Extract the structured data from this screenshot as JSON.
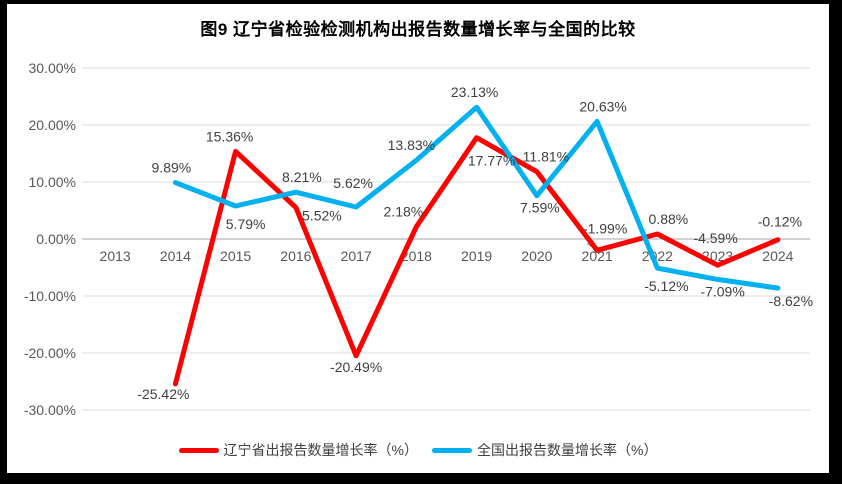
{
  "title": "图9  辽宁省检验检测机构出报告数量增长率与全国的比较",
  "legend": {
    "items": [
      {
        "label": "辽宁省出报告数量增长率（%）",
        "color": "#ff0000"
      },
      {
        "label": "全国出报告数量增长率（%）",
        "color": "#00b0f0"
      }
    ]
  },
  "colors": {
    "background": "#ffffff",
    "frame_border": "#000000",
    "gridline": "#dcdcdc",
    "zero_axis": "#c3c3c3",
    "axis_text": "#595959",
    "data_label_text": "#3f3f3f",
    "leader_line": "#9b9b9b"
  },
  "chart_data": {
    "type": "line",
    "title": "图9  辽宁省检验检测机构出报告数量增长率与全国的比较",
    "categories": [
      "2013",
      "2014",
      "2015",
      "2016",
      "2017",
      "2018",
      "2019",
      "2020",
      "2021",
      "2022",
      "2023",
      "2024"
    ],
    "series": [
      {
        "name": "辽宁省出报告数量增长率（%）",
        "color": "#ff0000",
        "values": [
          null,
          -25.42,
          15.36,
          5.52,
          -20.49,
          2.18,
          17.77,
          11.81,
          -1.99,
          0.88,
          -4.59,
          -0.12
        ],
        "label_side": [
          null,
          "below",
          "above",
          "below",
          "below",
          "above",
          "below",
          "above",
          "above",
          "above",
          "above",
          "above"
        ],
        "label_dx": [
          0,
          -12,
          -6,
          26,
          0,
          -13,
          15,
          9,
          8,
          11,
          -2,
          2
        ],
        "label_dy": [
          0,
          -8,
          0,
          -10,
          -7,
          0,
          5,
          0,
          -7,
          0,
          -12,
          -3
        ],
        "label_leader_indexes": [
          8
        ]
      },
      {
        "name": "全国出报告数量增长率（%）",
        "color": "#00b0f0",
        "values": [
          null,
          9.89,
          5.79,
          8.21,
          5.62,
          13.83,
          23.13,
          7.59,
          20.63,
          -5.12,
          -7.09,
          -8.62
        ],
        "label_side": [
          null,
          "above",
          "below",
          "above",
          "above",
          "above",
          "above",
          "below",
          "above",
          "below",
          "below",
          "below"
        ],
        "label_dx": [
          0,
          -4,
          10,
          6,
          -3,
          -5,
          -2,
          3,
          6,
          9,
          5,
          13
        ],
        "label_dy": [
          0,
          0,
          0,
          0,
          -9,
          0,
          0,
          -6,
          0,
          0,
          -6,
          -5
        ],
        "label_leader_indexes": []
      }
    ],
    "yticks": [
      "30.00%",
      "20.00%",
      "10.00%",
      "0.00%",
      "-10.00%",
      "-20.00%",
      "-30.00%"
    ],
    "ylim": [
      -30,
      30
    ],
    "ytick_step": 10,
    "value_format": "0.00%",
    "grid": true,
    "legend_position": "bottom"
  }
}
